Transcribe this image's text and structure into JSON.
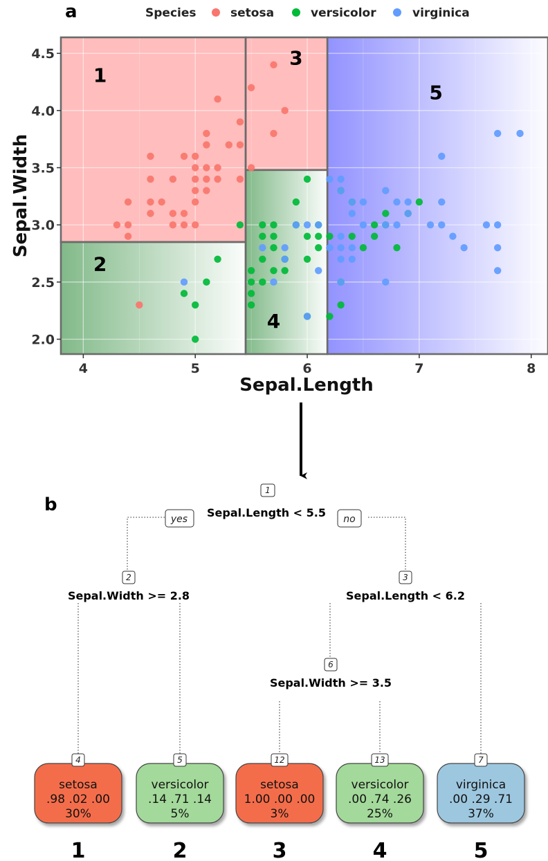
{
  "colors": {
    "setosa": "#F8766D",
    "versicolor": "#00BA38",
    "virginica": "#619CFF",
    "region_red": "#FFBDBD",
    "region_green": "#2E8B3A",
    "region_blue": "#7F7FFF",
    "leaf_setosa": "#F46D4C",
    "leaf_versicolor": "#A3D99A",
    "leaf_virginica": "#9DC7DF"
  },
  "panel_a": {
    "letter": "a",
    "legend": {
      "title": "Species",
      "entries": [
        "setosa",
        "versicolor",
        "virginica"
      ]
    },
    "region_labels": [
      "1",
      "2",
      "3",
      "4",
      "5"
    ]
  },
  "chart_data": [
    {
      "type": "scatter",
      "xlabel": "Sepal.Length",
      "ylabel": "Sepal.Width",
      "xlim": [
        3.8,
        8.15
      ],
      "ylim": [
        1.87,
        4.64
      ],
      "xticks": [
        4,
        5,
        6,
        7,
        8
      ],
      "yticks": [
        2.0,
        2.5,
        3.0,
        3.5,
        4.0,
        4.5
      ],
      "ytick_labels": [
        "2.0",
        "2.5",
        "3.0",
        "3.5",
        "4.0",
        "4.5"
      ],
      "grid": true,
      "legend_position": "top",
      "splits": {
        "x1": 5.45,
        "y1": 2.85,
        "x2": 6.18,
        "y2": 3.48
      },
      "regions": [
        {
          "label": "1",
          "x": [
            3.8,
            5.45
          ],
          "y": [
            2.85,
            4.64
          ],
          "fill": "red",
          "label_at": [
            4.15,
            4.25
          ]
        },
        {
          "label": "2",
          "x": [
            3.8,
            5.45
          ],
          "y": [
            1.87,
            2.85
          ],
          "fill": "green",
          "label_at": [
            4.15,
            2.6
          ]
        },
        {
          "label": "3",
          "x": [
            5.45,
            6.18
          ],
          "y": [
            3.48,
            4.64
          ],
          "fill": "red",
          "label_at": [
            5.9,
            4.4
          ]
        },
        {
          "label": "4",
          "x": [
            5.45,
            6.18
          ],
          "y": [
            1.87,
            3.48
          ],
          "fill": "green",
          "label_at": [
            5.7,
            2.1
          ]
        },
        {
          "label": "5",
          "x": [
            6.18,
            8.15
          ],
          "y": [
            1.87,
            4.64
          ],
          "fill": "blue",
          "label_at": [
            7.15,
            4.1
          ]
        }
      ],
      "series": [
        {
          "name": "setosa",
          "points": [
            [
              4.3,
              3.0
            ],
            [
              4.4,
              2.9
            ],
            [
              4.4,
              3.0
            ],
            [
              4.4,
              3.2
            ],
            [
              4.5,
              2.3
            ],
            [
              4.6,
              3.1
            ],
            [
              4.6,
              3.2
            ],
            [
              4.6,
              3.4
            ],
            [
              4.6,
              3.6
            ],
            [
              4.7,
              3.2
            ],
            [
              4.8,
              3.0
            ],
            [
              4.8,
              3.1
            ],
            [
              4.8,
              3.4
            ],
            [
              4.9,
              3.0
            ],
            [
              4.9,
              3.1
            ],
            [
              4.9,
              3.6
            ],
            [
              5.0,
              3.0
            ],
            [
              5.0,
              3.2
            ],
            [
              5.0,
              3.3
            ],
            [
              5.0,
              3.4
            ],
            [
              5.0,
              3.5
            ],
            [
              5.0,
              3.6
            ],
            [
              5.1,
              3.3
            ],
            [
              5.1,
              3.4
            ],
            [
              5.1,
              3.5
            ],
            [
              5.1,
              3.7
            ],
            [
              5.1,
              3.8
            ],
            [
              5.2,
              3.4
            ],
            [
              5.2,
              3.5
            ],
            [
              5.2,
              4.1
            ],
            [
              5.3,
              3.7
            ],
            [
              5.4,
              3.4
            ],
            [
              5.4,
              3.7
            ],
            [
              5.4,
              3.9
            ],
            [
              5.5,
              3.5
            ],
            [
              5.5,
              4.2
            ],
            [
              5.7,
              3.8
            ],
            [
              5.7,
              4.4
            ],
            [
              5.8,
              4.0
            ]
          ]
        },
        {
          "name": "versicolor",
          "points": [
            [
              4.9,
              2.4
            ],
            [
              5.0,
              2.0
            ],
            [
              5.0,
              2.3
            ],
            [
              5.1,
              2.5
            ],
            [
              5.2,
              2.7
            ],
            [
              5.4,
              3.0
            ],
            [
              5.5,
              2.3
            ],
            [
              5.5,
              2.4
            ],
            [
              5.5,
              2.5
            ],
            [
              5.5,
              2.6
            ],
            [
              5.6,
              2.5
            ],
            [
              5.6,
              2.7
            ],
            [
              5.6,
              2.9
            ],
            [
              5.6,
              3.0
            ],
            [
              5.7,
              2.6
            ],
            [
              5.7,
              2.8
            ],
            [
              5.7,
              2.9
            ],
            [
              5.7,
              3.0
            ],
            [
              5.8,
              2.6
            ],
            [
              5.8,
              2.7
            ],
            [
              5.9,
              3.0
            ],
            [
              5.9,
              3.2
            ],
            [
              6.0,
              2.2
            ],
            [
              6.0,
              2.7
            ],
            [
              6.0,
              2.9
            ],
            [
              6.0,
              3.4
            ],
            [
              6.1,
              2.8
            ],
            [
              6.1,
              2.9
            ],
            [
              6.1,
              3.0
            ],
            [
              6.2,
              2.2
            ],
            [
              6.2,
              2.9
            ],
            [
              6.3,
              2.3
            ],
            [
              6.3,
              2.5
            ],
            [
              6.3,
              3.3
            ],
            [
              6.4,
              2.9
            ],
            [
              6.4,
              3.2
            ],
            [
              6.5,
              2.8
            ],
            [
              6.6,
              2.9
            ],
            [
              6.6,
              3.0
            ],
            [
              6.7,
              3.0
            ],
            [
              6.7,
              3.1
            ],
            [
              6.8,
              2.8
            ],
            [
              6.9,
              3.1
            ],
            [
              7.0,
              3.2
            ]
          ]
        },
        {
          "name": "virginica",
          "points": [
            [
              4.9,
              2.5
            ],
            [
              5.6,
              2.8
            ],
            [
              5.7,
              2.5
            ],
            [
              5.8,
              2.7
            ],
            [
              5.8,
              2.8
            ],
            [
              5.9,
              3.0
            ],
            [
              6.0,
              2.2
            ],
            [
              6.0,
              3.0
            ],
            [
              6.1,
              2.6
            ],
            [
              6.1,
              3.0
            ],
            [
              6.2,
              2.8
            ],
            [
              6.2,
              3.4
            ],
            [
              6.3,
              2.5
            ],
            [
              6.3,
              2.7
            ],
            [
              6.3,
              2.8
            ],
            [
              6.3,
              2.9
            ],
            [
              6.3,
              3.3
            ],
            [
              6.3,
              3.4
            ],
            [
              6.4,
              2.7
            ],
            [
              6.4,
              2.8
            ],
            [
              6.4,
              3.1
            ],
            [
              6.4,
              3.2
            ],
            [
              6.5,
              3.0
            ],
            [
              6.5,
              3.2
            ],
            [
              6.7,
              2.5
            ],
            [
              6.7,
              3.0
            ],
            [
              6.7,
              3.3
            ],
            [
              6.8,
              3.0
            ],
            [
              6.8,
              3.2
            ],
            [
              6.9,
              3.1
            ],
            [
              6.9,
              3.2
            ],
            [
              7.1,
              3.0
            ],
            [
              7.2,
              3.0
            ],
            [
              7.2,
              3.2
            ],
            [
              7.2,
              3.6
            ],
            [
              7.3,
              2.9
            ],
            [
              7.4,
              2.8
            ],
            [
              7.6,
              3.0
            ],
            [
              7.7,
              2.6
            ],
            [
              7.7,
              2.8
            ],
            [
              7.7,
              3.0
            ],
            [
              7.7,
              3.8
            ],
            [
              7.9,
              3.8
            ]
          ]
        }
      ]
    },
    {
      "type": "diagram",
      "letter": "b",
      "nodes": [
        {
          "id": "1",
          "split": "Sepal.Length < 5.5"
        },
        {
          "id": "2",
          "split": "Sepal.Width >= 2.8"
        },
        {
          "id": "3",
          "split": "Sepal.Length < 6.2"
        },
        {
          "id": "6",
          "split": "Sepal.Width >= 3.5"
        }
      ],
      "branch_labels": {
        "yes": "yes",
        "no": "no"
      },
      "leaves": [
        {
          "id": "4",
          "class": "setosa",
          "probs": ".98  .02  .00",
          "pct": "30%",
          "region": "1"
        },
        {
          "id": "5",
          "class": "versicolor",
          "probs": ".14  .71  .14",
          "pct": "5%",
          "region": "2"
        },
        {
          "id": "12",
          "class": "setosa",
          "probs": "1.00  .00  .00",
          "pct": "3%",
          "region": "3"
        },
        {
          "id": "13",
          "class": "versicolor",
          "probs": ".00  .74  .26",
          "pct": "25%",
          "region": "4"
        },
        {
          "id": "7",
          "class": "virginica",
          "probs": ".00  .29  .71",
          "pct": "37%",
          "region": "5"
        }
      ]
    }
  ]
}
